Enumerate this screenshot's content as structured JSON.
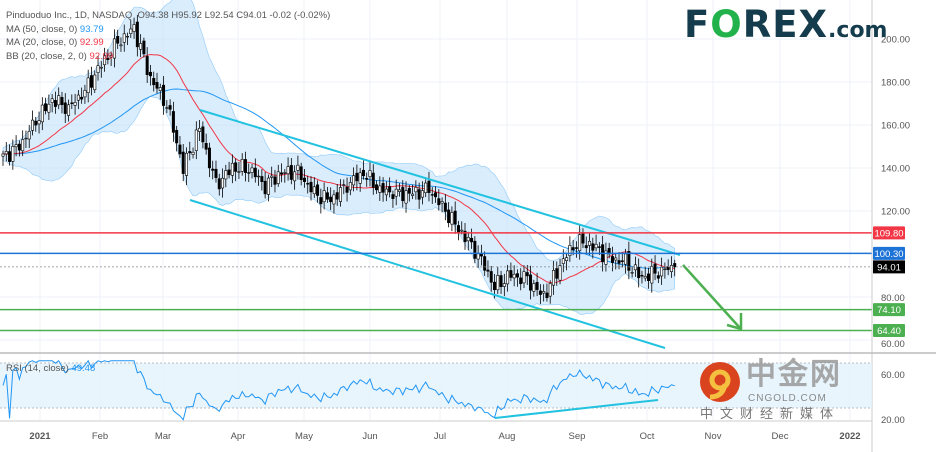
{
  "legend": {
    "symbol": "Pinduoduo Inc., 1D, NASDAQ",
    "ohlc": "O94.38 H95.92 L92.54 C94.01 -0.02 (-0.02%)",
    "ma50_label": "MA (50, close, 0)",
    "ma50_value": "93.79",
    "ma20_label": "MA (20, close, 0)",
    "ma20_value": "92.99",
    "bb_label": "BB (20, close, 2, 0)",
    "bb_value": "92.99"
  },
  "rsi_legend": {
    "label": "RSI (14, close)",
    "value": "49.48"
  },
  "logo": {
    "part1": "F",
    "o": "O",
    "part2": "REX",
    "com": ".com"
  },
  "watermark": {
    "text": "中金网",
    "url": "CNGOLD.COM",
    "sub": "中文财经新媒体"
  },
  "colors": {
    "ma50": "#2196f3",
    "ma20": "#f23645",
    "bb_fill": "#bbdefb",
    "trend": "#22c2e0",
    "support": "#4caf50",
    "resist_red": "#f23645",
    "resist_blue": "#1e73d6",
    "rsi": "#2196f3"
  },
  "chart_data": {
    "type": "candlestick",
    "title": "Pinduoduo Inc., 1D, NASDAQ",
    "ylim": [
      55,
      215
    ],
    "yticks": [
      "200.00",
      "180.00",
      "160.00",
      "140.00",
      "120.00",
      "80.00",
      "60.00"
    ],
    "ytick_values": [
      200,
      180,
      160,
      140,
      120,
      80,
      60
    ],
    "xticks": [
      "2021",
      "Feb",
      "Mar",
      "Apr",
      "May",
      "Jun",
      "Jul",
      "Aug",
      "Sep",
      "Oct",
      "Nov",
      "Dec",
      "2022"
    ],
    "approx_closes_every_5_days": [
      145,
      150,
      162,
      172,
      168,
      176,
      188,
      198,
      205,
      182,
      170,
      140,
      158,
      132,
      140,
      140,
      132,
      138,
      138,
      128,
      125,
      132,
      138,
      130,
      128,
      128,
      130,
      120,
      110,
      100,
      85,
      90,
      88,
      80,
      95,
      106,
      104,
      98,
      96,
      89,
      92,
      94.01
    ],
    "last_price": {
      "value": 94.01,
      "label": "94.01"
    },
    "levels": [
      {
        "value": 109.8,
        "label": "109.80",
        "color": "#f23645"
      },
      {
        "value": 100.3,
        "label": "100.30",
        "color": "#1e73d6"
      },
      {
        "value": 74.1,
        "label": "74.10",
        "color": "#4caf50"
      },
      {
        "value": 64.4,
        "label": "64.40",
        "color": "#4caf50"
      }
    ],
    "rsi": {
      "ylim": [
        15,
        75
      ],
      "bands": [
        30,
        70
      ],
      "yticks": [
        "60.00",
        "20.00"
      ],
      "ytick_values": [
        60,
        20
      ],
      "last": 49.48
    }
  }
}
